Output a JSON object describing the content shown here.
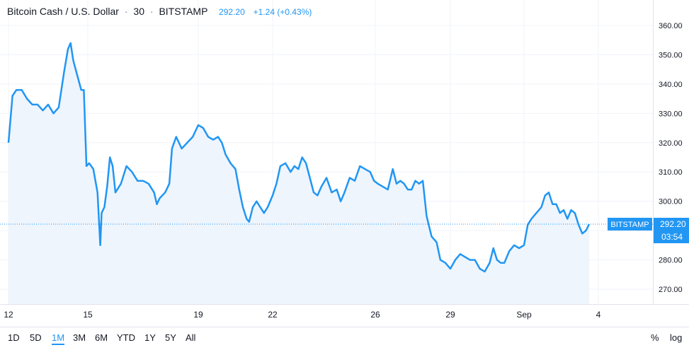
{
  "header": {
    "symbol": "Bitcoin Cash / U.S. Dollar",
    "interval": "30",
    "exchange": "BITSTAMP",
    "price": "292.20",
    "change": "+1.24 (+0.43%)",
    "sep1": "/",
    "sep2": "·",
    "sep3": "·"
  },
  "price_badge": {
    "exchange": "BITSTAMP",
    "price": "292.20",
    "countdown": "03:54"
  },
  "ranges": [
    "1D",
    "5D",
    "1M",
    "3M",
    "6M",
    "YTD",
    "1Y",
    "5Y",
    "All"
  ],
  "active_range": "1M",
  "options": {
    "percent": "%",
    "log": "log"
  },
  "colors": {
    "line": "#2196f3",
    "area": "#eef5fd",
    "grid": "#f0f3fa",
    "axis": "#e0e3eb",
    "badge": "#2196f3"
  },
  "chart_data": {
    "type": "area",
    "x_ticks": [
      "12",
      "15",
      "19",
      "22",
      "26",
      "29",
      "Sep",
      "4"
    ],
    "y_ticks": [
      "270.00",
      "280.00",
      "290.00",
      "300.00",
      "310.00",
      "320.00",
      "330.00",
      "340.00",
      "350.00",
      "360.00"
    ],
    "ylim": [
      262,
      366
    ],
    "last_value": 292.2,
    "series": [
      {
        "values": [
          [
            0,
            320
          ],
          [
            0.15,
            336
          ],
          [
            0.3,
            338
          ],
          [
            0.5,
            338
          ],
          [
            0.7,
            335
          ],
          [
            0.9,
            333
          ],
          [
            1.1,
            333
          ],
          [
            1.3,
            331
          ],
          [
            1.5,
            333
          ],
          [
            1.7,
            330
          ],
          [
            1.9,
            332
          ],
          [
            2.1,
            344
          ],
          [
            2.25,
            352
          ],
          [
            2.35,
            354
          ],
          [
            2.45,
            348
          ],
          [
            2.6,
            343
          ],
          [
            2.75,
            338
          ],
          [
            2.85,
            338
          ],
          [
            2.95,
            312
          ],
          [
            3.05,
            313
          ],
          [
            3.2,
            311
          ],
          [
            3.35,
            303
          ],
          [
            3.45,
            285
          ],
          [
            3.5,
            296
          ],
          [
            3.6,
            298
          ],
          [
            3.7,
            305
          ],
          [
            3.8,
            315
          ],
          [
            3.9,
            312
          ],
          [
            4.0,
            303
          ],
          [
            4.2,
            306
          ],
          [
            4.4,
            312
          ],
          [
            4.6,
            310
          ],
          [
            4.8,
            307
          ],
          [
            5.0,
            307
          ],
          [
            5.2,
            306
          ],
          [
            5.4,
            303
          ],
          [
            5.5,
            299
          ],
          [
            5.6,
            301
          ],
          [
            5.8,
            303
          ],
          [
            5.95,
            306
          ],
          [
            6.05,
            318
          ],
          [
            6.2,
            322
          ],
          [
            6.4,
            318
          ],
          [
            6.6,
            320
          ],
          [
            6.8,
            322
          ],
          [
            7.0,
            326
          ],
          [
            7.2,
            325
          ],
          [
            7.4,
            322
          ],
          [
            7.6,
            321
          ],
          [
            7.8,
            322
          ],
          [
            7.95,
            320
          ],
          [
            8.1,
            316
          ],
          [
            8.3,
            313
          ],
          [
            8.5,
            311
          ],
          [
            8.65,
            304
          ],
          [
            8.8,
            298
          ],
          [
            8.95,
            294
          ],
          [
            9.05,
            293
          ],
          [
            9.2,
            298
          ],
          [
            9.35,
            300
          ],
          [
            9.5,
            298
          ],
          [
            9.65,
            296
          ],
          [
            9.8,
            298
          ],
          [
            10.0,
            302
          ],
          [
            10.15,
            306
          ],
          [
            10.3,
            312
          ],
          [
            10.5,
            313
          ],
          [
            10.7,
            310
          ],
          [
            10.85,
            312
          ],
          [
            11.0,
            311
          ],
          [
            11.15,
            315
          ],
          [
            11.3,
            313
          ],
          [
            11.45,
            308
          ],
          [
            11.6,
            303
          ],
          [
            11.75,
            302
          ],
          [
            11.9,
            305
          ],
          [
            12.1,
            308
          ],
          [
            12.3,
            303
          ],
          [
            12.5,
            304
          ],
          [
            12.65,
            300
          ],
          [
            12.8,
            303
          ],
          [
            13.0,
            308
          ],
          [
            13.2,
            307
          ],
          [
            13.4,
            312
          ],
          [
            13.6,
            311
          ],
          [
            13.8,
            310
          ],
          [
            13.95,
            307
          ],
          [
            14.1,
            306
          ],
          [
            14.3,
            305
          ],
          [
            14.5,
            304
          ],
          [
            14.7,
            311
          ],
          [
            14.85,
            306
          ],
          [
            15.0,
            307
          ],
          [
            15.15,
            306
          ],
          [
            15.3,
            304
          ],
          [
            15.45,
            304
          ],
          [
            15.6,
            307
          ],
          [
            15.75,
            306
          ],
          [
            15.9,
            307
          ],
          [
            16.05,
            295
          ],
          [
            16.25,
            288
          ],
          [
            16.45,
            286
          ],
          [
            16.6,
            280
          ],
          [
            16.8,
            279
          ],
          [
            17.0,
            277
          ],
          [
            17.2,
            280
          ],
          [
            17.4,
            282
          ],
          [
            17.6,
            281
          ],
          [
            17.8,
            280
          ],
          [
            18.0,
            280
          ],
          [
            18.2,
            277
          ],
          [
            18.4,
            276
          ],
          [
            18.6,
            279
          ],
          [
            18.75,
            284
          ],
          [
            18.9,
            280
          ],
          [
            19.05,
            279
          ],
          [
            19.2,
            279
          ],
          [
            19.4,
            283
          ],
          [
            19.6,
            285
          ],
          [
            19.8,
            284
          ],
          [
            20.0,
            285
          ],
          [
            20.15,
            292
          ],
          [
            20.3,
            294
          ],
          [
            20.5,
            296
          ],
          [
            20.7,
            298
          ],
          [
            20.85,
            302
          ],
          [
            21.0,
            303
          ],
          [
            21.15,
            299
          ],
          [
            21.3,
            299
          ],
          [
            21.45,
            296
          ],
          [
            21.6,
            297
          ],
          [
            21.75,
            294
          ],
          [
            21.9,
            297
          ],
          [
            22.05,
            296
          ],
          [
            22.2,
            292
          ],
          [
            22.35,
            289
          ],
          [
            22.5,
            290
          ],
          [
            22.63,
            292.2
          ]
        ]
      }
    ]
  }
}
